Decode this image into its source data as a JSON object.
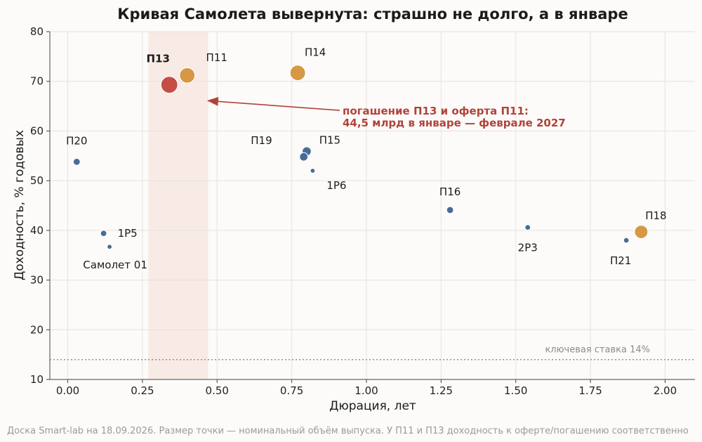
{
  "chart_data": {
    "type": "scatter",
    "title": "Кривая Самолета вывернута: страшно не долго, а в январе",
    "xlabel": "Дюрация, лет",
    "ylabel": "Доходность, % годовых",
    "xlim": [
      -0.06,
      2.1
    ],
    "ylim": [
      10,
      80
    ],
    "xticks": [
      0.0,
      0.25,
      0.5,
      0.75,
      1.0,
      1.25,
      1.5,
      1.75,
      2.0
    ],
    "xtick_labels": [
      "0.00",
      "0.25",
      "0.50",
      "0.75",
      "1.00",
      "1.25",
      "1.50",
      "1.75",
      "2.00"
    ],
    "yticks": [
      10,
      20,
      30,
      40,
      50,
      60,
      70,
      80
    ],
    "ytick_labels": [
      "10",
      "20",
      "30",
      "40",
      "50",
      "60",
      "70",
      "80"
    ],
    "grid": true,
    "colors": {
      "base": "#3f6690",
      "highlight": "#c4453e",
      "orange": "#d6933b",
      "band": "#f4ddd6",
      "annotation": "#b2433a"
    },
    "points": [
      {
        "label": "П20",
        "x": 0.03,
        "y": 53.8,
        "size": 10,
        "color": "base"
      },
      {
        "label": "1Р5",
        "x": 0.12,
        "y": 39.4,
        "size": 9,
        "color": "base"
      },
      {
        "label": "Самолет 01",
        "x": 0.14,
        "y": 36.7,
        "size": 7,
        "color": "base"
      },
      {
        "label": "П13",
        "x": 0.34,
        "y": 69.3,
        "size": 24,
        "color": "highlight",
        "bold": true
      },
      {
        "label": "П11",
        "x": 0.4,
        "y": 71.2,
        "size": 22,
        "color": "orange"
      },
      {
        "label": "П14",
        "x": 0.77,
        "y": 71.7,
        "size": 22,
        "color": "orange"
      },
      {
        "label": "П19",
        "x": 0.79,
        "y": 54.8,
        "size": 12,
        "color": "base"
      },
      {
        "label": "П15",
        "x": 0.8,
        "y": 55.9,
        "size": 13,
        "color": "base"
      },
      {
        "label": "1Р6",
        "x": 0.82,
        "y": 52.0,
        "size": 7,
        "color": "base"
      },
      {
        "label": "П16",
        "x": 1.28,
        "y": 44.1,
        "size": 10,
        "color": "base"
      },
      {
        "label": "2Р3",
        "x": 1.54,
        "y": 40.6,
        "size": 8,
        "color": "base"
      },
      {
        "label": "П21",
        "x": 1.87,
        "y": 38.0,
        "size": 8,
        "color": "base"
      },
      {
        "label": "П18",
        "x": 1.92,
        "y": 39.7,
        "size": 19,
        "color": "orange"
      }
    ],
    "highlight_band": {
      "x_from": 0.27,
      "x_to": 0.47
    },
    "reference_line": {
      "y": 14,
      "label": "ключевая ставка 14%"
    },
    "annotation": {
      "lines": [
        "погашение П13 и оферта П11:",
        "44,5 млрд в январе — феврале 2027"
      ],
      "arrow_to": {
        "x": 0.47,
        "y": 66.1
      },
      "text_at": {
        "x": 0.92,
        "y": 63.3
      }
    },
    "footnote": "Доска Smart-lab на 18.09.2026. Размер точки — номинальный объём выпуска. У П11 и П13 доходность к оферте/погашению соответственно"
  }
}
